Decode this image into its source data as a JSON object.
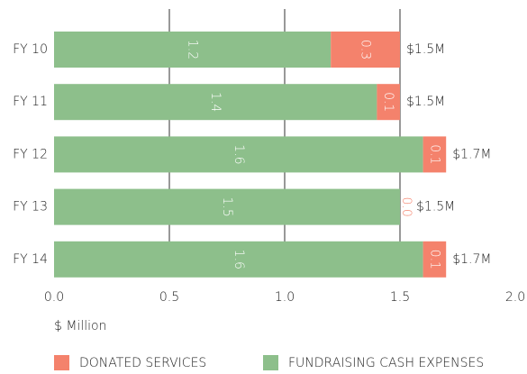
{
  "chart_data": {
    "type": "stacked-barh",
    "categories": [
      "FY 10",
      "FY 11",
      "FY 12",
      "FY 13",
      "FY 14"
    ],
    "series": [
      {
        "name": "FUNDRAISING CASH EXPENSES",
        "color": "#8dbf8b",
        "values": [
          1.2,
          1.4,
          1.6,
          1.5,
          1.6
        ]
      },
      {
        "name": "DONATED SERVICES",
        "color": "#f4826c",
        "values": [
          0.3,
          0.1,
          0.1,
          0,
          0.1
        ],
        "value_labels": [
          "0.3",
          "0.1",
          "0.1",
          "0.0",
          "0.1"
        ]
      }
    ],
    "annotations": [
      "$1.5M",
      "$1.5M",
      "$1.7M",
      "$1.5M",
      "$1.7M"
    ],
    "xlabel": "$ Million",
    "xlim": [
      0,
      2
    ],
    "xticks": [
      {
        "value": 0,
        "label": "0.0"
      },
      0.5,
      {
        "value": 1,
        "label": "1.0"
      },
      1.5,
      {
        "value": 2,
        "label": "2.0"
      }
    ],
    "grid": true,
    "legend": "bottom"
  }
}
